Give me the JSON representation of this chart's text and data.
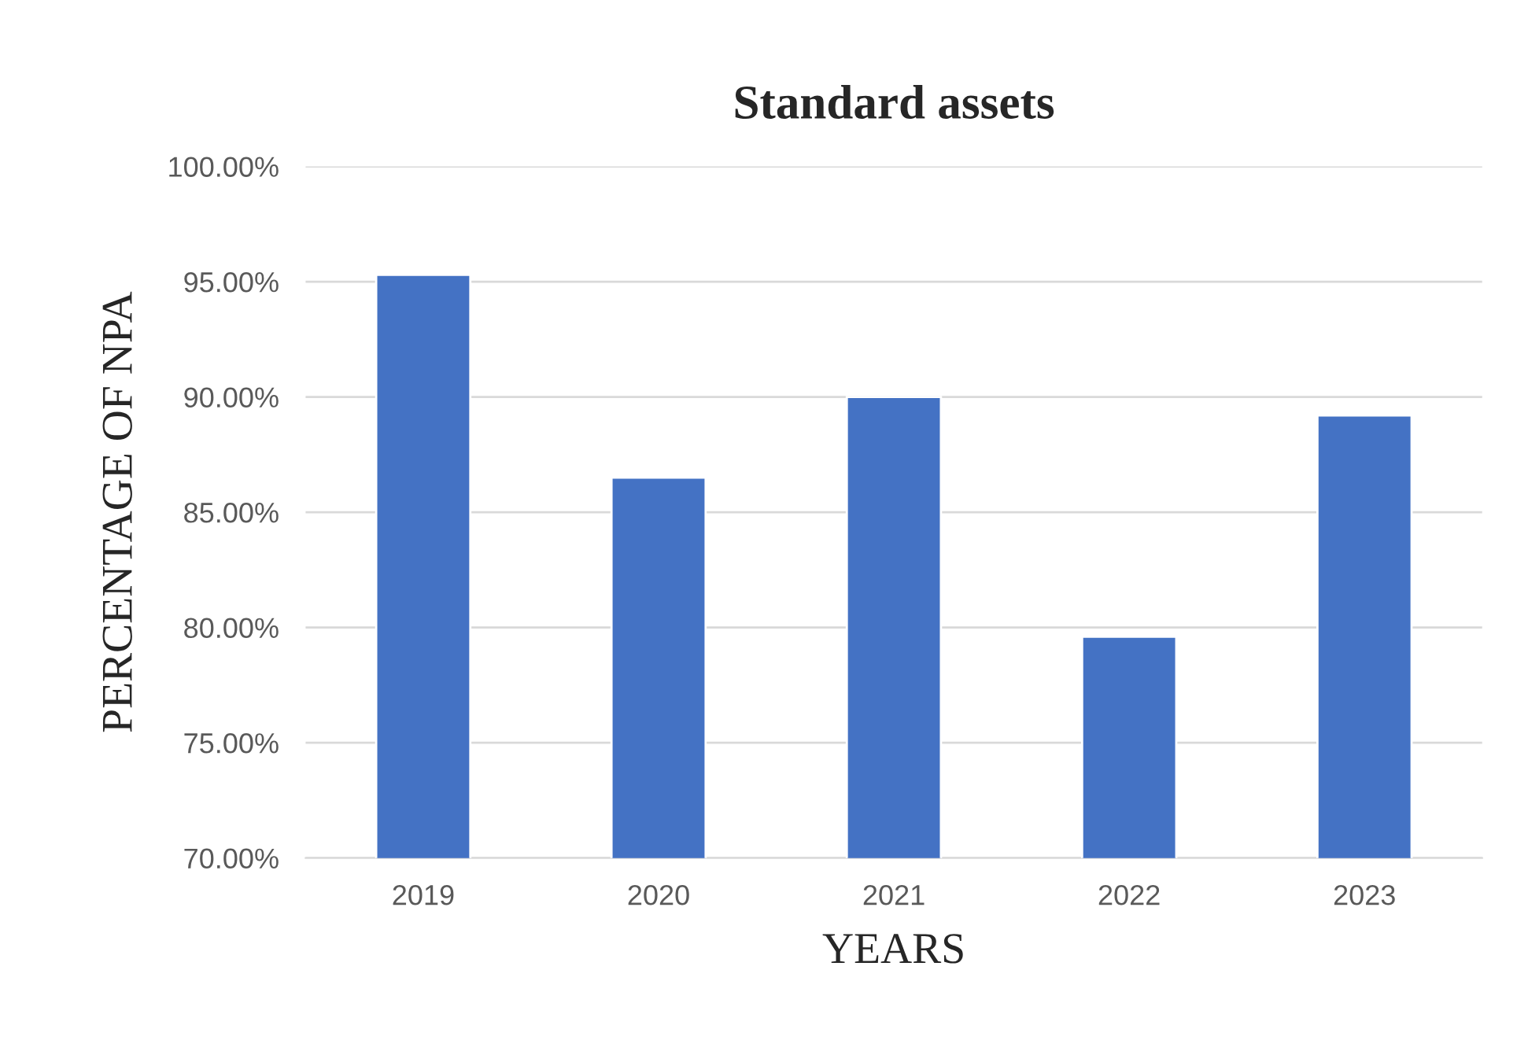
{
  "chart_data": {
    "type": "bar",
    "title": "Standard assets",
    "xlabel": "YEARS",
    "ylabel": "PERCENTAGE OF NPA",
    "categories": [
      "2019",
      "2020",
      "2021",
      "2022",
      "2023"
    ],
    "values": [
      95.3,
      86.5,
      90.0,
      79.6,
      89.2
    ],
    "color": "#4472c4",
    "ylim": [
      70,
      100
    ],
    "yticks": [
      {
        "value": 70,
        "label": "70.00%"
      },
      {
        "value": 75,
        "label": "75.00%"
      },
      {
        "value": 80,
        "label": "80.00%"
      },
      {
        "value": 85,
        "label": "85.00%"
      },
      {
        "value": 90,
        "label": "90.00%"
      },
      {
        "value": 95,
        "label": "95.00%"
      },
      {
        "value": 100,
        "label": "100.00%"
      }
    ],
    "grid": "y"
  }
}
